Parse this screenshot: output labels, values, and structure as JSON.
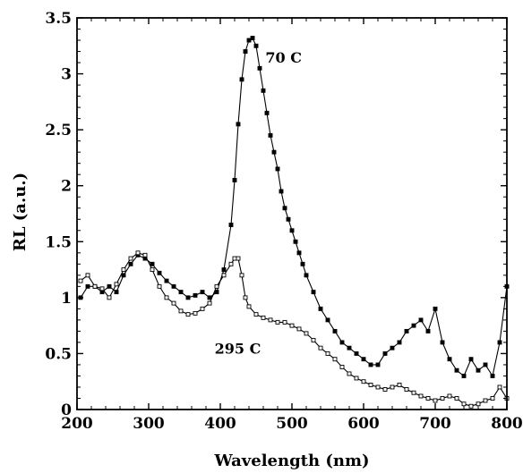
{
  "chart_data": {
    "type": "line",
    "title": "",
    "xlabel": "Wavelength  (nm)",
    "ylabel": "RL (a.u.)",
    "xlim": [
      200,
      800
    ],
    "ylim": [
      0,
      3.5
    ],
    "x_ticks": [
      "200",
      "300",
      "400",
      "500",
      "600",
      "700",
      "800"
    ],
    "y_ticks": [
      "0",
      "0.5",
      "1",
      "1.5",
      "2",
      "2.5",
      "3",
      "3.5"
    ],
    "grid": false,
    "legend": "none",
    "annotations": [
      {
        "text": "70 C",
        "x": 463,
        "y": 3.1
      },
      {
        "text": "295 C",
        "x": 392,
        "y": 0.5
      }
    ],
    "series": [
      {
        "label_ref": "70 C",
        "marker": "filled-square",
        "color": "#000000",
        "x": [
          205,
          215,
          225,
          235,
          245,
          255,
          265,
          275,
          285,
          295,
          305,
          315,
          325,
          335,
          345,
          355,
          365,
          375,
          385,
          395,
          405,
          415,
          420,
          425,
          430,
          435,
          440,
          445,
          450,
          455,
          460,
          465,
          470,
          475,
          480,
          485,
          490,
          495,
          500,
          505,
          510,
          515,
          520,
          530,
          540,
          550,
          560,
          570,
          580,
          590,
          600,
          610,
          620,
          630,
          640,
          650,
          660,
          670,
          680,
          690,
          700,
          710,
          720,
          730,
          740,
          750,
          760,
          770,
          780,
          790,
          800
        ],
        "y": [
          1.0,
          1.1,
          1.1,
          1.05,
          1.1,
          1.05,
          1.2,
          1.3,
          1.38,
          1.35,
          1.3,
          1.22,
          1.15,
          1.1,
          1.05,
          1.0,
          1.02,
          1.05,
          1.0,
          1.05,
          1.25,
          1.65,
          2.05,
          2.55,
          2.95,
          3.2,
          3.3,
          3.32,
          3.25,
          3.05,
          2.85,
          2.65,
          2.45,
          2.3,
          2.15,
          1.95,
          1.8,
          1.7,
          1.6,
          1.5,
          1.4,
          1.3,
          1.2,
          1.05,
          0.9,
          0.8,
          0.7,
          0.6,
          0.55,
          0.5,
          0.45,
          0.4,
          0.4,
          0.5,
          0.55,
          0.6,
          0.7,
          0.75,
          0.8,
          0.7,
          0.9,
          0.6,
          0.45,
          0.35,
          0.3,
          0.45,
          0.35,
          0.4,
          0.3,
          0.6,
          1.1
        ]
      },
      {
        "label_ref": "295 C",
        "marker": "open-square",
        "color": "#000000",
        "x": [
          205,
          215,
          225,
          235,
          245,
          255,
          265,
          275,
          285,
          295,
          305,
          315,
          325,
          335,
          345,
          355,
          365,
          375,
          385,
          395,
          405,
          415,
          420,
          425,
          430,
          435,
          440,
          450,
          460,
          470,
          480,
          490,
          500,
          510,
          520,
          530,
          540,
          550,
          560,
          570,
          580,
          590,
          600,
          610,
          620,
          630,
          640,
          650,
          660,
          670,
          680,
          690,
          700,
          710,
          720,
          730,
          740,
          750,
          760,
          770,
          780,
          790,
          800
        ],
        "y": [
          1.15,
          1.2,
          1.1,
          1.08,
          1.0,
          1.12,
          1.25,
          1.35,
          1.4,
          1.38,
          1.25,
          1.1,
          1.0,
          0.95,
          0.88,
          0.85,
          0.86,
          0.9,
          0.95,
          1.1,
          1.2,
          1.3,
          1.35,
          1.35,
          1.2,
          1.0,
          0.92,
          0.85,
          0.82,
          0.8,
          0.78,
          0.78,
          0.75,
          0.72,
          0.68,
          0.62,
          0.55,
          0.5,
          0.45,
          0.38,
          0.32,
          0.28,
          0.25,
          0.22,
          0.2,
          0.18,
          0.2,
          0.22,
          0.18,
          0.15,
          0.12,
          0.1,
          0.08,
          0.1,
          0.12,
          0.1,
          0.05,
          0.03,
          0.05,
          0.08,
          0.1,
          0.2,
          0.1
        ]
      }
    ]
  }
}
